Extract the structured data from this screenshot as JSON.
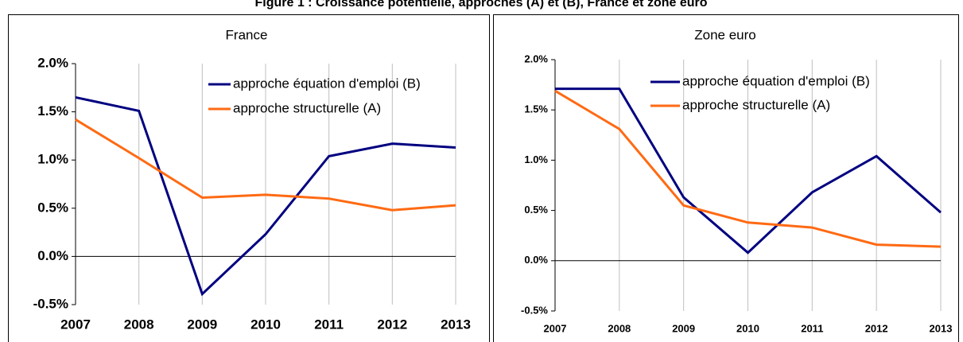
{
  "title": "Figure 1 : Croissance potentielle, approches (A) et (B), France et zone euro",
  "chart_data": [
    {
      "type": "line",
      "title": "France",
      "categories": [
        "2007",
        "2008",
        "2009",
        "2010",
        "2011",
        "2012",
        "2013"
      ],
      "series": [
        {
          "name": "approche équation d'emploi (B)",
          "color": "#000080",
          "values": [
            1.65,
            1.51,
            -0.39,
            0.23,
            1.04,
            1.17,
            1.13
          ]
        },
        {
          "name": "approche structurelle (A)",
          "color": "#ff6a13",
          "values": [
            1.42,
            1.02,
            0.61,
            0.64,
            0.6,
            0.48,
            0.53
          ]
        }
      ],
      "ylim": [
        -0.5,
        2.0
      ],
      "yticks": [
        {
          "value": -0.5,
          "label": "-0.5%"
        },
        {
          "value": 0.0,
          "label": "0.0%"
        },
        {
          "value": 0.5,
          "label": "0.5%"
        },
        {
          "value": 1.0,
          "label": "1.0%"
        },
        {
          "value": 1.5,
          "label": "1.5%"
        },
        {
          "value": 2.0,
          "label": "2.0%"
        }
      ],
      "grid": true,
      "legend": "top-right"
    },
    {
      "type": "line",
      "title": "Zone euro",
      "categories": [
        "2007",
        "2008",
        "2009",
        "2010",
        "2011",
        "2012",
        "2013"
      ],
      "series": [
        {
          "name": "approche équation d'emploi (B)",
          "color": "#000080",
          "values": [
            1.71,
            1.71,
            0.63,
            0.08,
            0.68,
            1.04,
            0.48
          ]
        },
        {
          "name": "approche structurelle (A)",
          "color": "#ff6a13",
          "values": [
            1.69,
            1.31,
            0.55,
            0.38,
            0.33,
            0.16,
            0.14
          ]
        }
      ],
      "ylim": [
        -0.5,
        2.0
      ],
      "yticks": [
        {
          "value": -0.5,
          "label": "-0.5%"
        },
        {
          "value": 0.0,
          "label": "0.0%"
        },
        {
          "value": 0.5,
          "label": "0.5%"
        },
        {
          "value": 1.0,
          "label": "1.0%"
        },
        {
          "value": 1.5,
          "label": "1.5%"
        },
        {
          "value": 2.0,
          "label": "2.0%"
        }
      ],
      "grid": true,
      "legend": "top-right"
    }
  ]
}
